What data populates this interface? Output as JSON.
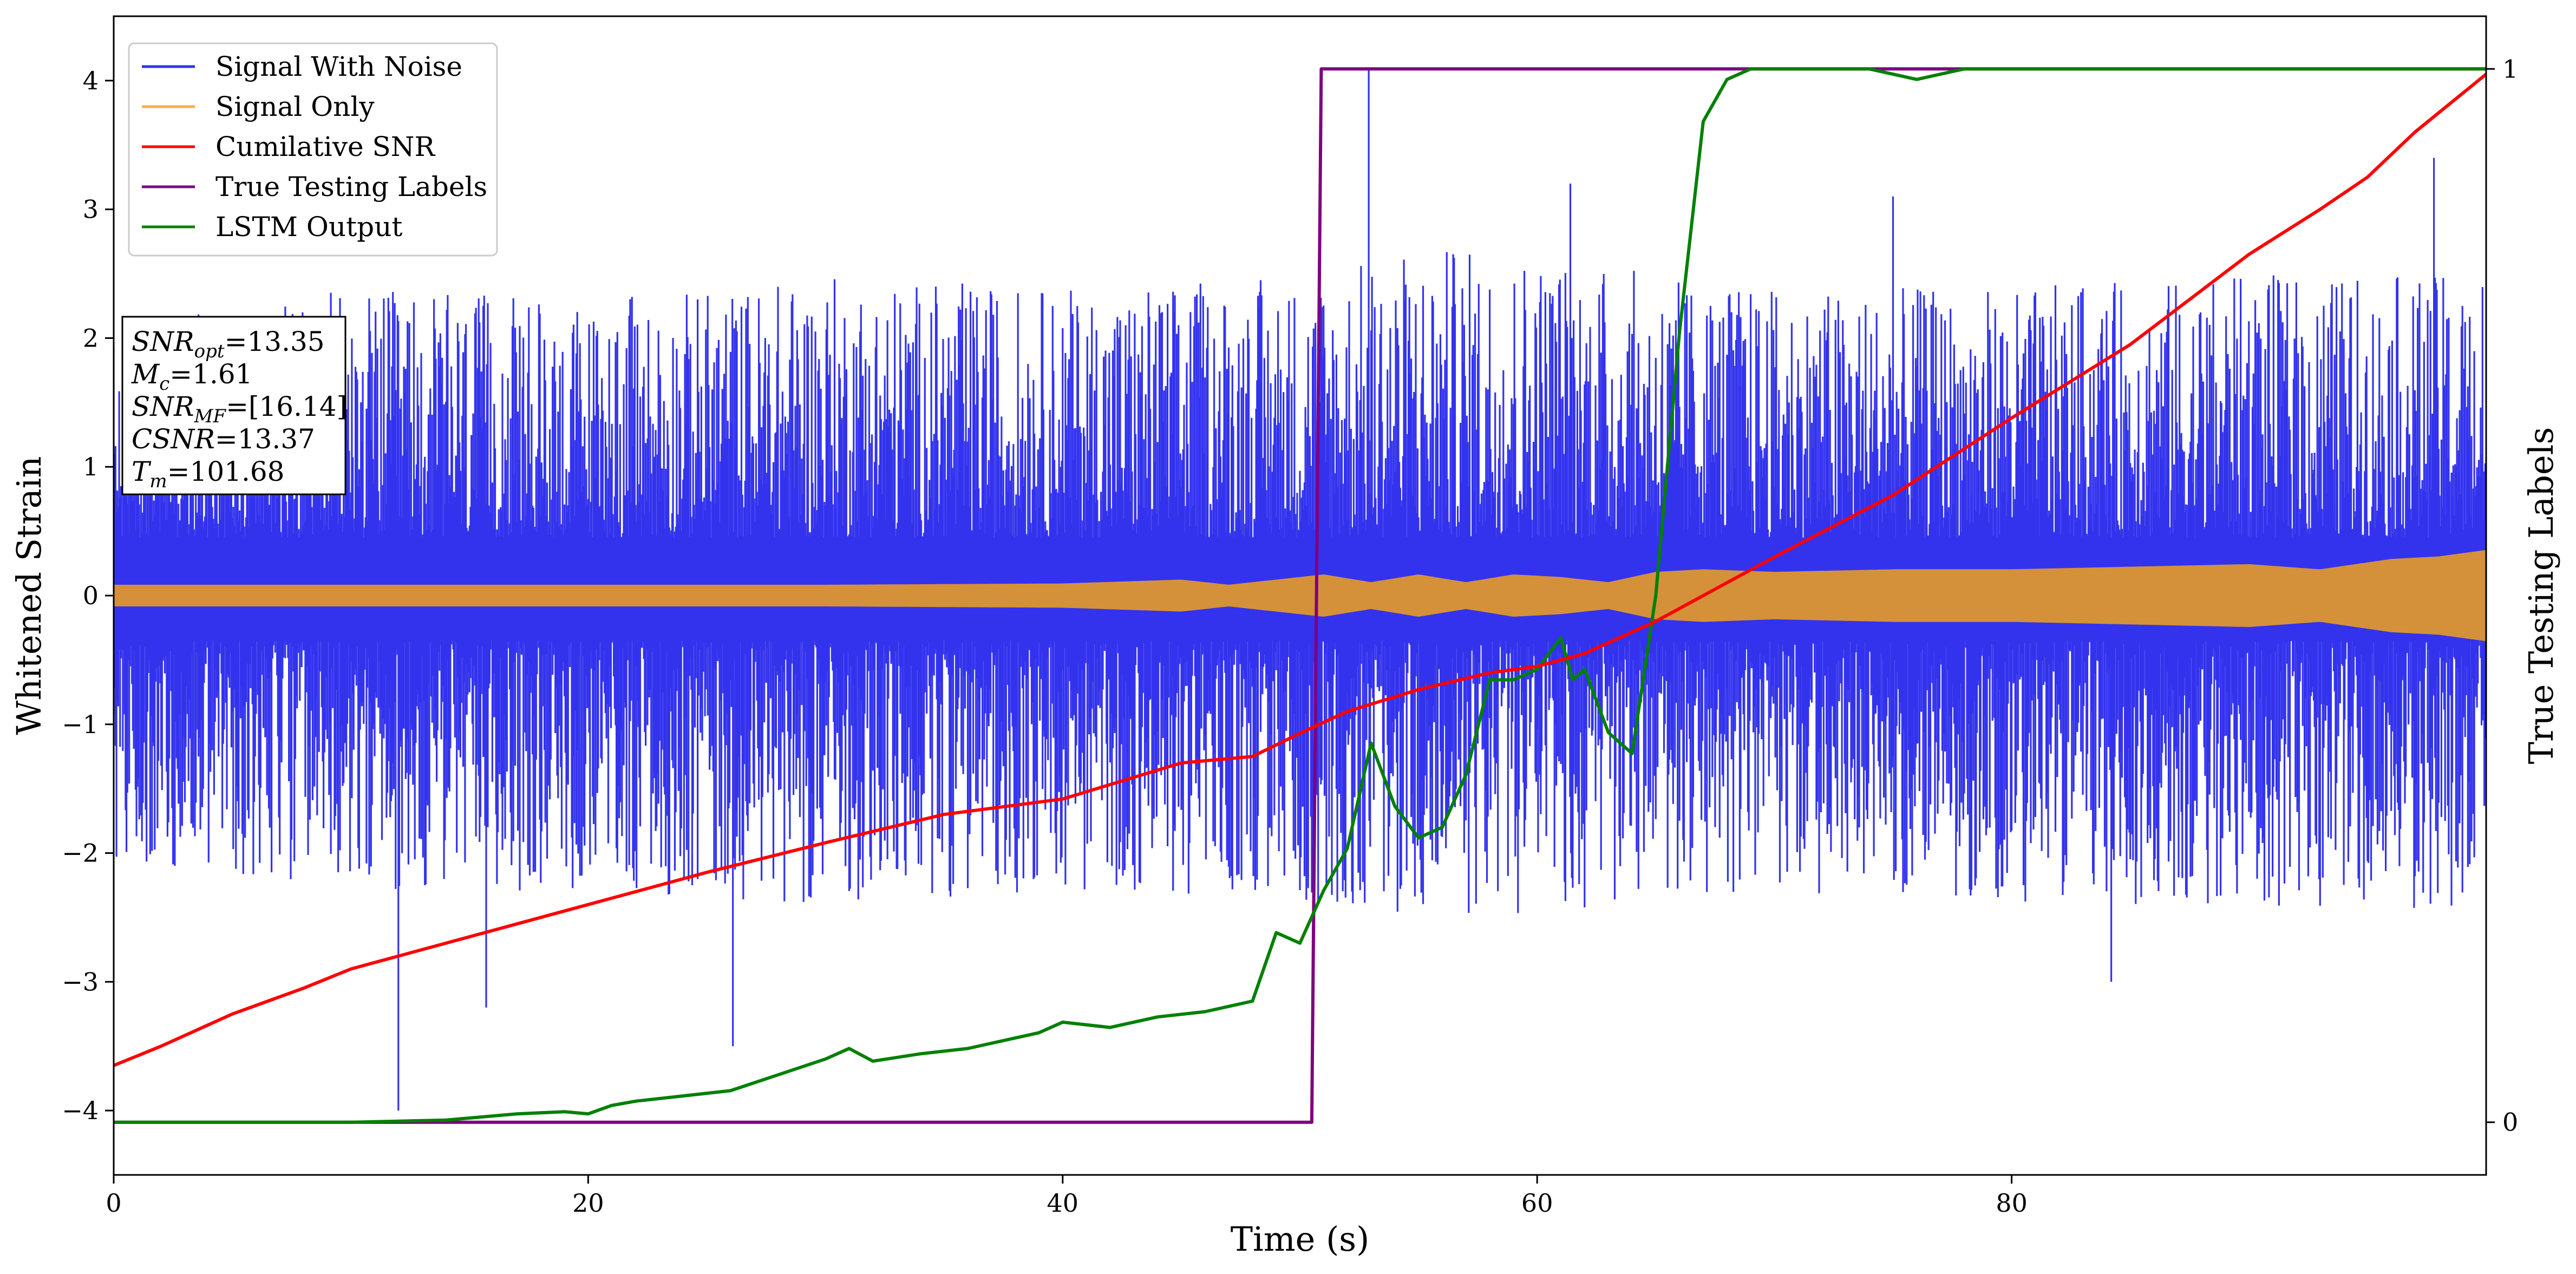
{
  "chart_data": {
    "type": "line",
    "xlabel": "Time (s)",
    "ylabel": "Whitened Strain",
    "y2label": "True Testing Labels",
    "xlim": [
      0,
      100
    ],
    "ylim": [
      -4.5,
      4.5
    ],
    "y2lim": [
      -0.05,
      1.05
    ],
    "x_ticks": [
      0,
      20,
      40,
      60,
      80
    ],
    "y_ticks": [
      -4,
      -3,
      -2,
      -1,
      0,
      1,
      2,
      3,
      4
    ],
    "y2_ticks": [
      0,
      1
    ],
    "x_tick_labels": [
      "0",
      "20",
      "40",
      "60",
      "80"
    ],
    "y_tick_labels": [
      "−4",
      "−3",
      "−2",
      "−1",
      "0",
      "1",
      "2",
      "3",
      "4"
    ],
    "y2_tick_labels": [
      "0",
      "1"
    ],
    "grid": false,
    "legend_position": "top-left",
    "series": [
      {
        "name": "Signal With Noise",
        "color": "#3333ee",
        "kind": "dense-noise",
        "envelope_x": [
          0,
          10,
          20,
          30,
          40,
          50,
          55,
          60,
          65,
          70,
          80,
          90,
          100
        ],
        "envelope_upper_typical": [
          2.0,
          2.3,
          2.2,
          2.4,
          2.3,
          2.4,
          2.6,
          2.6,
          2.4,
          2.3,
          2.3,
          2.4,
          2.4
        ],
        "envelope_lower_typical": [
          -2.0,
          -2.2,
          -2.2,
          -2.3,
          -2.2,
          -2.3,
          -2.4,
          -2.4,
          -2.3,
          -2.2,
          -2.3,
          -2.3,
          -2.4
        ],
        "dense_core": [
          -0.35,
          0.45
        ],
        "peaks": [
          [
            12.0,
            -4.0
          ],
          [
            15.7,
            -3.2
          ],
          [
            26.1,
            -3.5
          ],
          [
            52.9,
            4.1
          ],
          [
            97.8,
            3.4
          ],
          [
            61.4,
            3.2
          ],
          [
            75.0,
            3.1
          ],
          [
            84.2,
            -3.0
          ]
        ]
      },
      {
        "name": "Signal Only",
        "color": "#f5b041",
        "fill_color": "#d4913a",
        "kind": "amplitude-band",
        "x": [
          0,
          10,
          20,
          30,
          40,
          45,
          47,
          49,
          51,
          53,
          55,
          57,
          59,
          61,
          63,
          65,
          67,
          70,
          75,
          80,
          85,
          90,
          93,
          96,
          98,
          100
        ],
        "amplitude": [
          0.08,
          0.08,
          0.08,
          0.08,
          0.09,
          0.12,
          0.08,
          0.12,
          0.16,
          0.1,
          0.16,
          0.1,
          0.16,
          0.14,
          0.1,
          0.18,
          0.2,
          0.18,
          0.2,
          0.2,
          0.22,
          0.24,
          0.2,
          0.28,
          0.3,
          0.35
        ]
      },
      {
        "name": "Cumilative SNR",
        "color": "#ff0000",
        "axis": "left",
        "x": [
          0,
          2,
          5,
          8,
          10,
          15,
          20,
          25,
          30,
          35,
          40,
          45,
          48,
          50,
          52,
          55,
          58,
          60,
          62,
          65,
          70,
          75,
          80,
          85,
          90,
          93,
          95,
          97,
          100
        ],
        "values": [
          -3.65,
          -3.5,
          -3.25,
          -3.05,
          -2.9,
          -2.65,
          -2.4,
          -2.15,
          -1.92,
          -1.7,
          -1.58,
          -1.3,
          -1.25,
          -1.07,
          -0.9,
          -0.73,
          -0.6,
          -0.55,
          -0.45,
          -0.2,
          0.3,
          0.78,
          1.38,
          1.95,
          2.65,
          3.0,
          3.25,
          3.6,
          4.05
        ]
      },
      {
        "name": "True Testing Labels",
        "color": "#7f007f",
        "axis": "right",
        "x": [
          0,
          50.5,
          50.9,
          100
        ],
        "values": [
          0,
          0,
          1,
          1
        ]
      },
      {
        "name": "LSTM Output",
        "color": "#008000",
        "axis": "right",
        "x": [
          0,
          10,
          14,
          17,
          19,
          20,
          21,
          22,
          24,
          26,
          28,
          30,
          31,
          32,
          34,
          36,
          38,
          39,
          40,
          42,
          44,
          46,
          48,
          49,
          50,
          51,
          52,
          53,
          54,
          55,
          56,
          57,
          58,
          59,
          60,
          61,
          61.5,
          62,
          63,
          64,
          65,
          66,
          67,
          68,
          69,
          70,
          72,
          74,
          76,
          78,
          80,
          90,
          100
        ],
        "values": [
          0,
          0,
          0.002,
          0.008,
          0.01,
          0.008,
          0.016,
          0.02,
          0.025,
          0.03,
          0.045,
          0.06,
          0.07,
          0.058,
          0.065,
          0.07,
          0.08,
          0.085,
          0.095,
          0.09,
          0.1,
          0.105,
          0.115,
          0.18,
          0.17,
          0.22,
          0.26,
          0.36,
          0.3,
          0.27,
          0.28,
          0.33,
          0.42,
          0.42,
          0.43,
          0.46,
          0.42,
          0.43,
          0.37,
          0.35,
          0.5,
          0.75,
          0.95,
          0.99,
          1.0,
          1.0,
          1.0,
          1.0,
          0.99,
          1.0,
          1.0,
          1.0,
          1.0
        ]
      }
    ],
    "legend": [
      "Signal With Noise",
      "Signal Only",
      "Cumilative SNR",
      "True Testing Labels",
      "LSTM Output"
    ],
    "annotation": {
      "position": "upper-left",
      "lines": [
        {
          "base": "SNR",
          "sub": "opt",
          "value": "=13.35"
        },
        {
          "base": "M",
          "sub": "c",
          "value": "=1.61"
        },
        {
          "base": "SNR",
          "sub": "MF",
          "value": "=[16.14]"
        },
        {
          "base": "CSNR",
          "sub": "",
          "value": "=13.37"
        },
        {
          "base": "T",
          "sub": "m",
          "value": "=101.68"
        }
      ]
    }
  }
}
